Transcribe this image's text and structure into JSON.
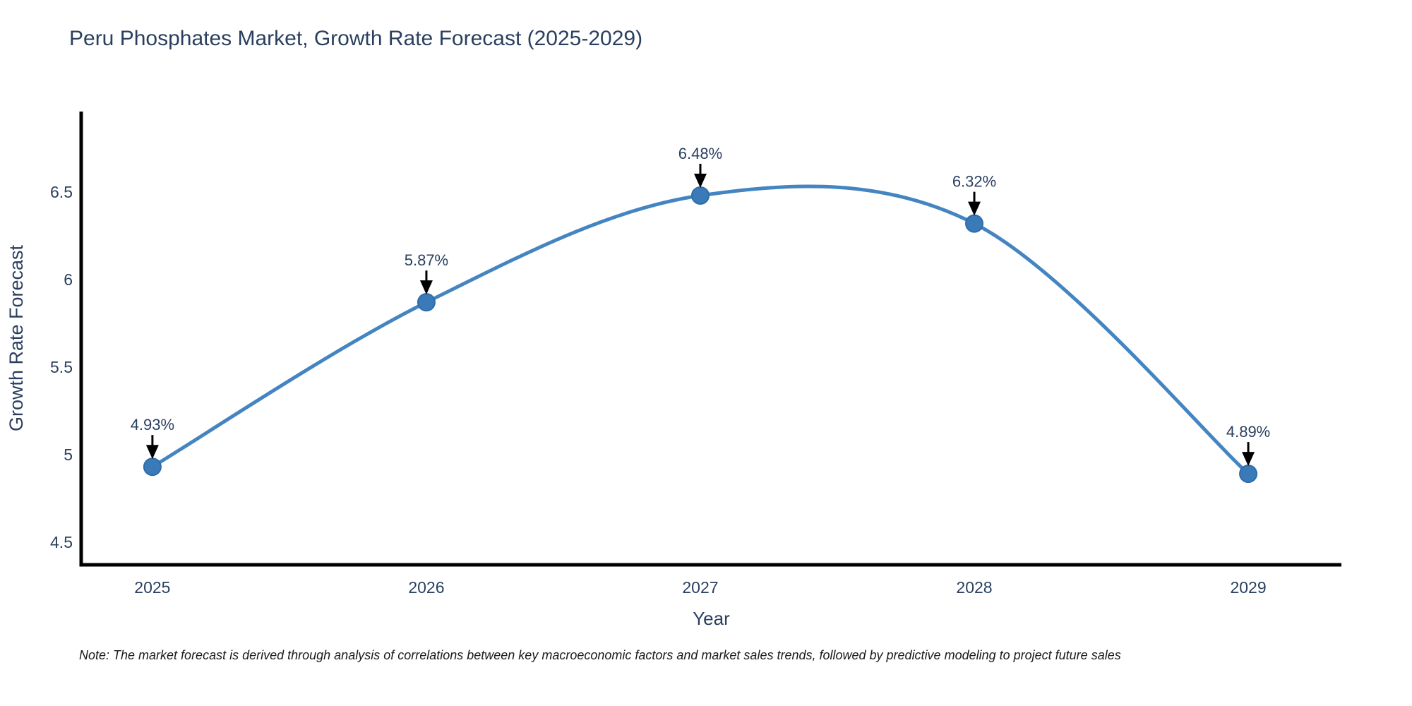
{
  "title": "Peru Phosphates Market, Growth Rate Forecast (2025-2029)",
  "note": "Note: The market forecast is derived through analysis of correlations between key macroeconomic factors and market sales trends, followed by predictive modeling to project future sales",
  "colors": {
    "title_text": "#2a3f5f",
    "axis_text": "#2a3f5f",
    "line": "#4485c1",
    "marker_fill": "#3a7ab9",
    "marker_edge": "#2e6da8",
    "axis_line": "#000000",
    "annotation_text": "#2a3f5f",
    "annotation_arrow": "#000000",
    "note_text": "#1a1a1a"
  },
  "chart_data": {
    "type": "line",
    "title": "Peru Phosphates Market, Growth Rate Forecast (2025-2029)",
    "x": [
      2025,
      2026,
      2027,
      2028,
      2029
    ],
    "values": [
      4.93,
      5.87,
      6.48,
      6.32,
      4.89
    ],
    "point_labels": [
      "4.93%",
      "5.87%",
      "6.48%",
      "6.32%",
      "4.89%"
    ],
    "xlabel": "Year",
    "ylabel": "Growth Rate Forecast",
    "x_tick_labels": [
      "2025",
      "2026",
      "2027",
      "2028",
      "2029"
    ],
    "y_ticks": [
      4.5,
      5,
      5.5,
      6,
      6.5
    ],
    "y_tick_labels": [
      "4.5",
      "5",
      "5.5",
      "6",
      "6.5"
    ],
    "xlim": [
      2024.74,
      2029.34
    ],
    "ylim": [
      4.37,
      6.96
    ],
    "grid": false,
    "legend": "none",
    "line_shape": "spline",
    "markers": true,
    "annotations": "value labels with downward arrows above each point"
  }
}
